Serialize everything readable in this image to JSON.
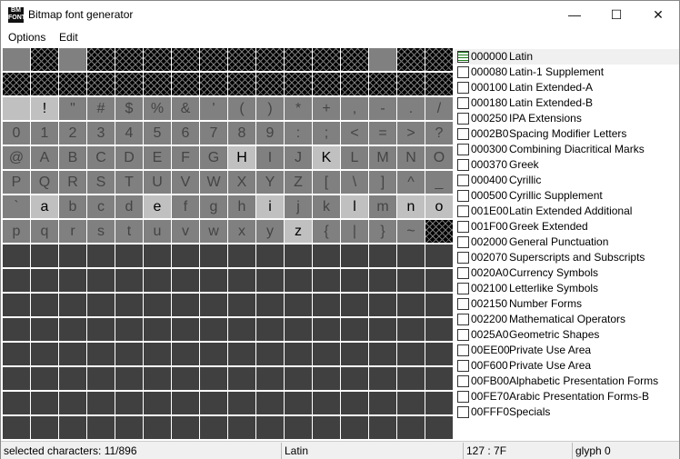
{
  "window": {
    "title": "Bitmap font generator",
    "logo": "BM FONT",
    "minimize": "—",
    "maximize": "☐",
    "close": "✕"
  },
  "menu": [
    "Options",
    "Edit"
  ],
  "grid": {
    "colors": {
      "available": "#808080",
      "selected": "#c0c0c0",
      "empty": "#404040",
      "unavailable_hatch": "#000000"
    },
    "rows": [
      {
        "chars": [
          "",
          "",
          "",
          "",
          "",
          "",
          "",
          "",
          "",
          "",
          "",
          "",
          "",
          "",
          "",
          ""
        ],
        "states": "gxgxxxxxxxxxxgxx"
      },
      {
        "chars": [
          "",
          "",
          "",
          "",
          "",
          "",
          "",
          "",
          "",
          "",
          "",
          "",
          "",
          "",
          "",
          ""
        ],
        "states": "xxxxxxxxxxxxxxxx"
      },
      {
        "chars": [
          "",
          " !",
          "\"",
          "#",
          "$",
          "%",
          "&",
          "'",
          "(",
          ")",
          "*",
          "+",
          ",",
          "-",
          ".",
          "/"
        ],
        "states": "ssgggggggggggggg"
      },
      {
        "chars": [
          "0",
          "1",
          "2",
          "3",
          "4",
          "5",
          "6",
          "7",
          "8",
          "9",
          ":",
          ";",
          "<",
          "=",
          ">",
          "?"
        ],
        "states": "gggggggggggggggg"
      },
      {
        "chars": [
          "@",
          "A",
          "B",
          "C",
          "D",
          "E",
          "F",
          "G",
          "H",
          "I",
          "J",
          "K",
          "L",
          "M",
          "N",
          "O"
        ],
        "states": "ggggggggsggsgggg"
      },
      {
        "chars": [
          "P",
          "Q",
          "R",
          "S",
          "T",
          "U",
          "V",
          "W",
          "X",
          "Y",
          "Z",
          "[",
          "\\",
          "]",
          "^",
          "_"
        ],
        "states": "gggggggggggggggg"
      },
      {
        "chars": [
          "`",
          "a",
          "b",
          "c",
          "d",
          "e",
          "f",
          "g",
          "h",
          "i",
          "j",
          "k",
          "l",
          "m",
          "n",
          "o"
        ],
        "states": "gsgggsgggsggsgss"
      },
      {
        "chars": [
          "p",
          "q",
          "r",
          "s",
          "t",
          "u",
          "v",
          "w",
          "x",
          "y",
          "z",
          "{",
          "|",
          "}",
          "~",
          ""
        ],
        "states": "ggggggggggsggggx"
      }
    ]
  },
  "charsets": [
    {
      "code": "000000",
      "name": "Latin",
      "checked": true
    },
    {
      "code": "000080",
      "name": "Latin-1 Supplement"
    },
    {
      "code": "000100",
      "name": "Latin Extended-A"
    },
    {
      "code": "000180",
      "name": "Latin Extended-B"
    },
    {
      "code": "000250",
      "name": "IPA Extensions"
    },
    {
      "code": "0002B0",
      "name": "Spacing Modifier Letters"
    },
    {
      "code": "000300",
      "name": "Combining Diacritical Marks"
    },
    {
      "code": "000370",
      "name": "Greek"
    },
    {
      "code": "000400",
      "name": "Cyrillic"
    },
    {
      "code": "000500",
      "name": "Cyrillic Supplement"
    },
    {
      "code": "001E00",
      "name": "Latin Extended Additional"
    },
    {
      "code": "001F00",
      "name": "Greek Extended"
    },
    {
      "code": "002000",
      "name": "General Punctuation"
    },
    {
      "code": "002070",
      "name": "Superscripts and Subscripts"
    },
    {
      "code": "0020A0",
      "name": "Currency Symbols"
    },
    {
      "code": "002100",
      "name": "Letterlike Symbols"
    },
    {
      "code": "002150",
      "name": "Number Forms"
    },
    {
      "code": "002200",
      "name": "Mathematical Operators"
    },
    {
      "code": "0025A0",
      "name": "Geometric Shapes"
    },
    {
      "code": "00EE00",
      "name": "Private Use Area"
    },
    {
      "code": "00F600",
      "name": "Private Use Area"
    },
    {
      "code": "00FB00",
      "name": "Alphabetic Presentation Forms"
    },
    {
      "code": "00FE70",
      "name": "Arabic Presentation Forms-B"
    },
    {
      "code": "00FFF0",
      "name": "Specials"
    }
  ],
  "status": {
    "selected": "selected characters: 11/896",
    "charset": "Latin",
    "code": "127 : 7F",
    "glyph": "glyph 0"
  }
}
